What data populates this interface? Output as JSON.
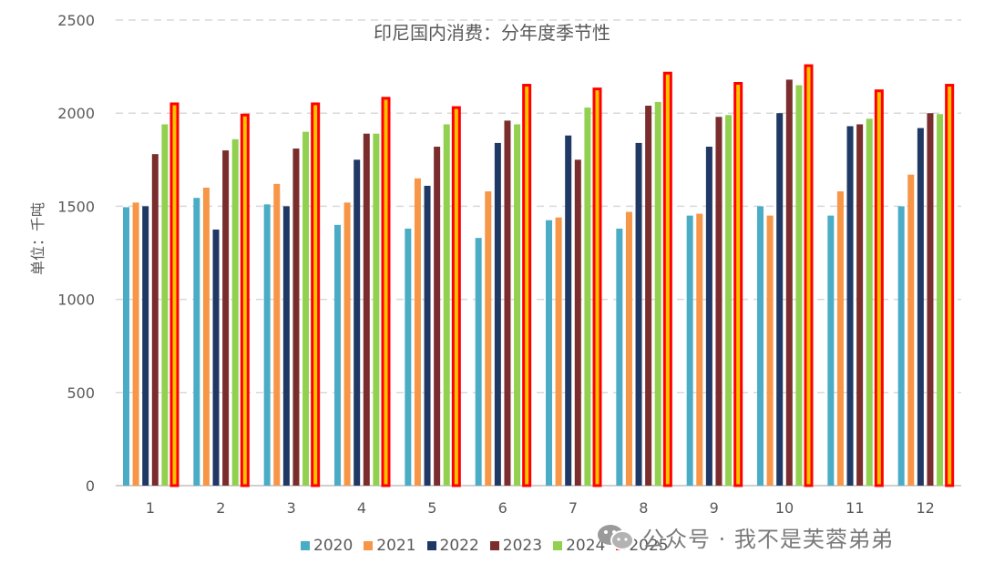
{
  "chart_data": {
    "type": "bar",
    "title": "印尼国内消费：分年度季节性",
    "ylabel": "单位：千吨",
    "xlabel": "",
    "ylim": [
      0,
      2500
    ],
    "yticks": [
      0,
      500,
      1000,
      1500,
      2000,
      2500
    ],
    "grid": true,
    "legend_position": "bottom",
    "categories": [
      "1",
      "2",
      "3",
      "4",
      "5",
      "6",
      "7",
      "8",
      "9",
      "10",
      "11",
      "12"
    ],
    "series": [
      {
        "name": "2020",
        "color": "#4bacc6",
        "values": [
          1495,
          1545,
          1510,
          1400,
          1380,
          1330,
          1425,
          1380,
          1450,
          1500,
          1450,
          1500
        ]
      },
      {
        "name": "2021",
        "color": "#f79646",
        "values": [
          1520,
          1600,
          1620,
          1520,
          1650,
          1580,
          1440,
          1470,
          1460,
          1450,
          1580,
          1670
        ]
      },
      {
        "name": "2022",
        "color": "#1f3864",
        "values": [
          1500,
          1375,
          1500,
          1750,
          1610,
          1840,
          1880,
          1840,
          1820,
          2000,
          1930,
          1920
        ]
      },
      {
        "name": "2023",
        "color": "#7b2c2c",
        "values": [
          1780,
          1800,
          1810,
          1890,
          1820,
          1960,
          1750,
          2040,
          1980,
          2180,
          1940,
          2000
        ]
      },
      {
        "name": "2024",
        "color": "#92d050",
        "values": [
          1940,
          1860,
          1900,
          1890,
          1940,
          1940,
          2030,
          2060,
          1990,
          2150,
          1970,
          1995
        ]
      },
      {
        "name": "2025",
        "color": "#ffc000",
        "border": "#ff0000",
        "values": [
          2050,
          1990,
          2050,
          2080,
          2030,
          2150,
          2130,
          2215,
          2160,
          2255,
          2120,
          2150
        ]
      }
    ]
  },
  "watermark": {
    "icon": "wechat-icon",
    "text": "公众号 · 我不是芙蓉弟弟"
  }
}
